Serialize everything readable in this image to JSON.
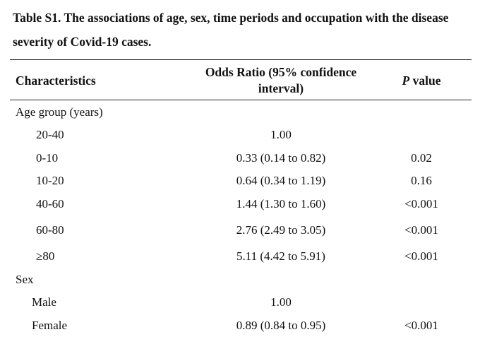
{
  "caption": {
    "line1": "Table S1. The associations of age, sex, time periods and occupation with the disease",
    "line2": "severity of Covid-19 cases."
  },
  "headers": {
    "characteristics": "Characteristics",
    "odds_ratio_line1": "Odds Ratio (95% confidence",
    "odds_ratio_line2": "interval)",
    "p_value_italic": "P",
    "p_value_rest": " value"
  },
  "rows": [
    {
      "kind": "group",
      "label": "Age group (years)",
      "odds_ratio": "",
      "p_value": ""
    },
    {
      "kind": "sub",
      "label": "20-40",
      "odds_ratio": "1.00",
      "p_value": ""
    },
    {
      "kind": "sub",
      "label": "0-10",
      "odds_ratio": "0.33 (0.14 to 0.82)",
      "p_value": "0.02"
    },
    {
      "kind": "sub",
      "label": "10-20",
      "odds_ratio": "0.64 (0.34 to 1.19)",
      "p_value": "0.16"
    },
    {
      "kind": "sub",
      "label": "40-60",
      "odds_ratio": "1.44 (1.30 to 1.60)",
      "p_value": "<0.001"
    },
    {
      "kind": "sub",
      "label": "60-80",
      "odds_ratio": "2.76 (2.49 to 3.05)",
      "p_value": "<0.001"
    },
    {
      "kind": "sub",
      "label": "≥80",
      "odds_ratio": "5.11 (4.42 to 5.91)",
      "p_value": "<0.001"
    },
    {
      "kind": "group",
      "label": "Sex",
      "odds_ratio": "",
      "p_value": ""
    },
    {
      "kind": "sub2",
      "label": "Male",
      "odds_ratio": "1.00",
      "p_value": ""
    },
    {
      "kind": "sub2",
      "label": "Female",
      "odds_ratio": "0.89 (0.84 to 0.95)",
      "p_value": "<0.001"
    }
  ]
}
